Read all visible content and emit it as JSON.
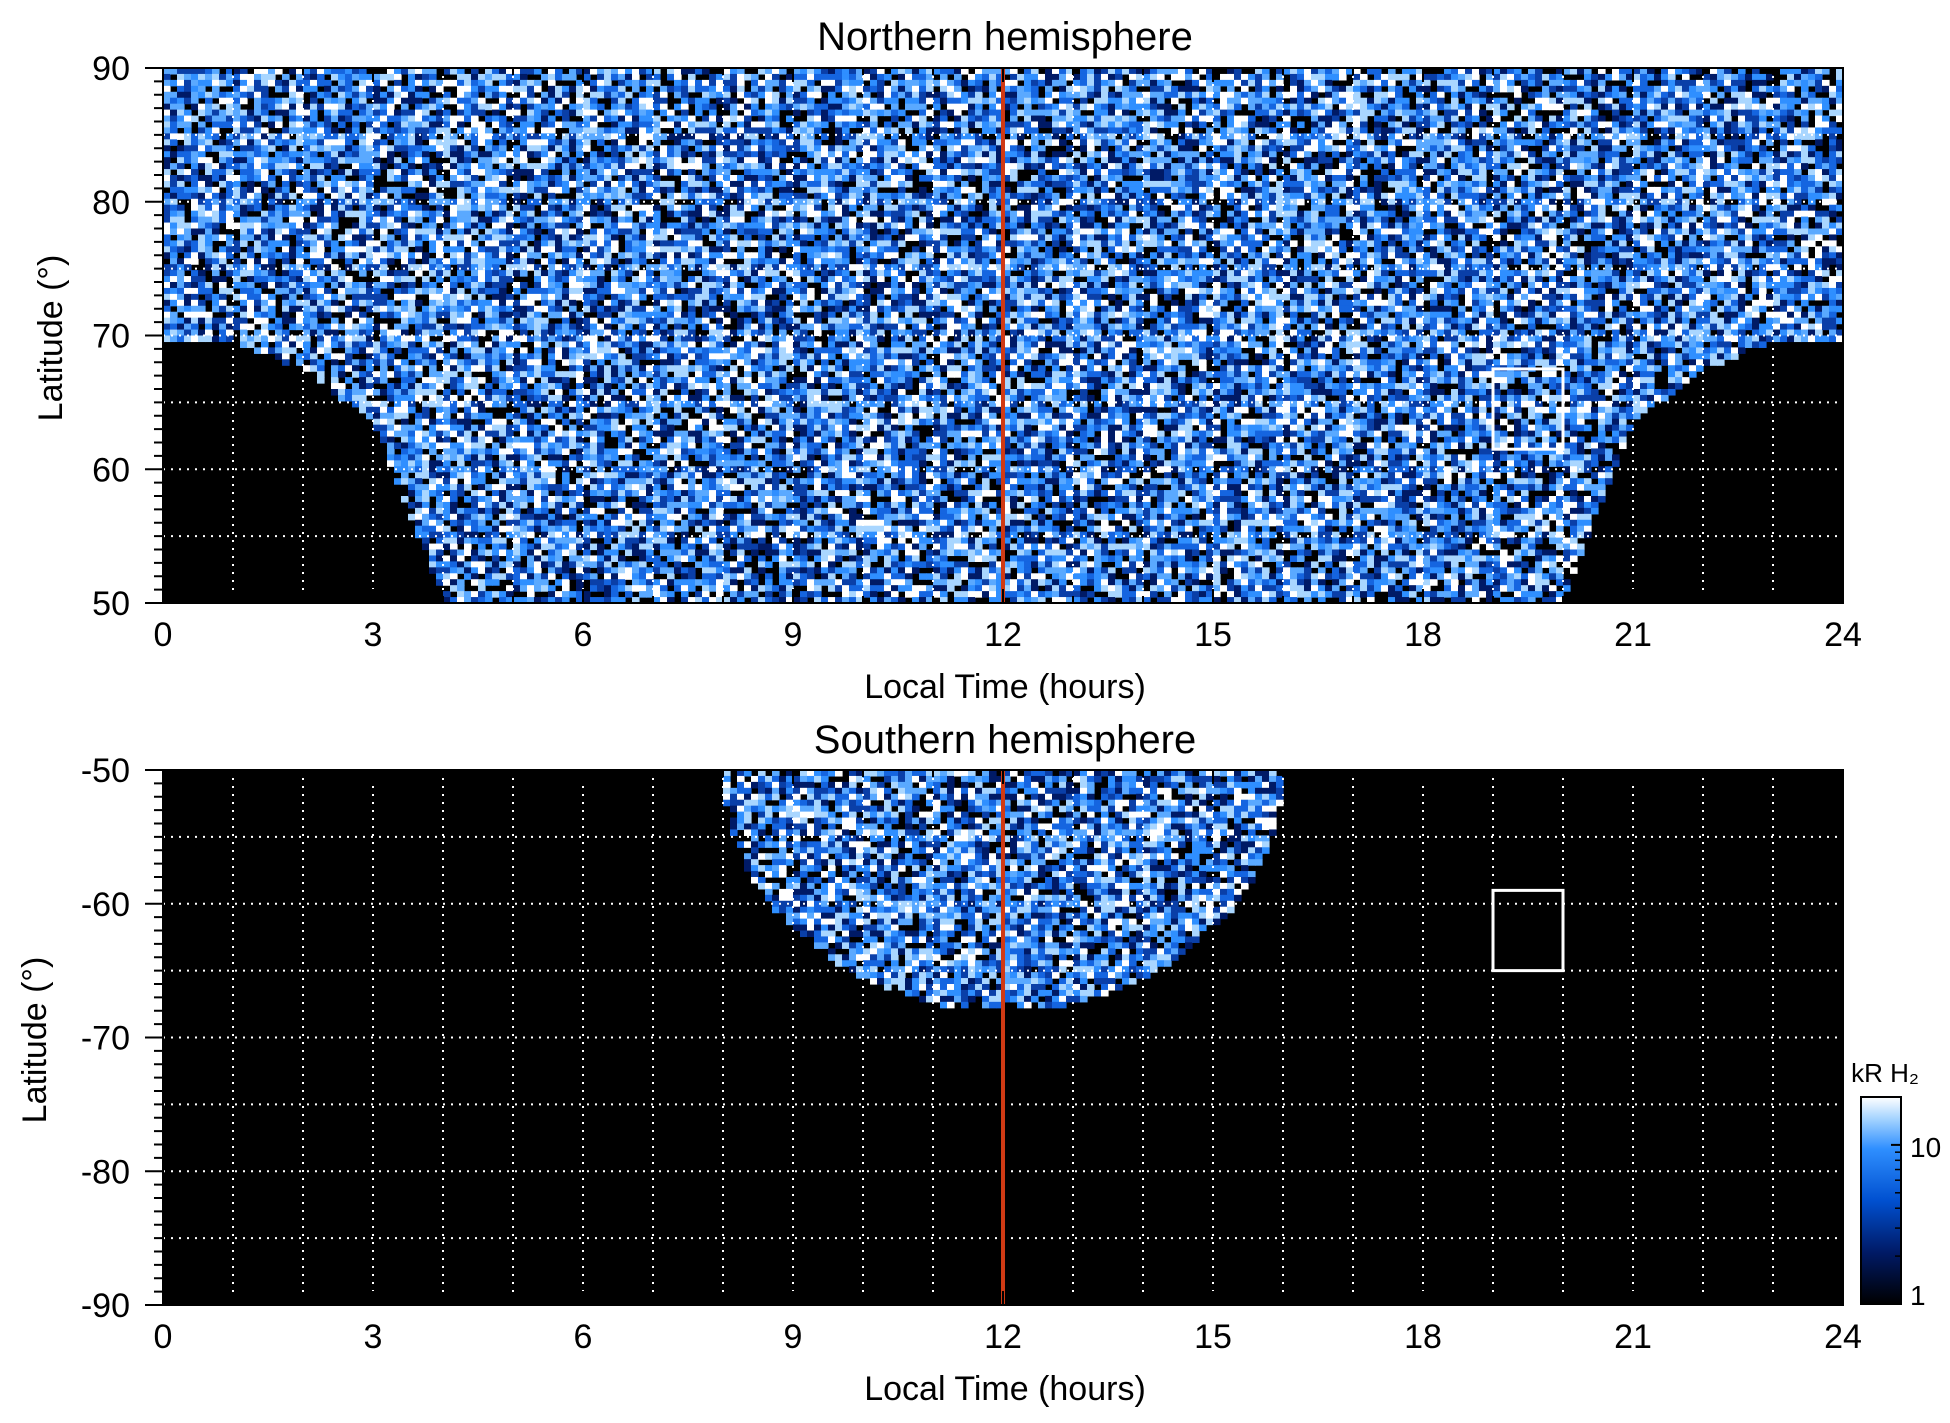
{
  "chart_data": [
    {
      "type": "heatmap",
      "title": "Northern hemisphere",
      "xlabel": "Local Time (hours)",
      "ylabel": "Latitude (°)",
      "xlim": [
        0,
        24
      ],
      "ylim": [
        50,
        90
      ],
      "xticks": [
        0,
        3,
        6,
        9,
        12,
        15,
        18,
        21,
        24
      ],
      "yticks": [
        50,
        60,
        70,
        80,
        90
      ],
      "grid": true,
      "emission_boundary": {
        "dawn_lat_at_lt": [
          [
            0,
            69.5
          ],
          [
            1,
            69.5
          ],
          [
            2,
            67.5
          ],
          [
            3,
            63.5
          ],
          [
            3.5,
            57
          ],
          [
            4,
            50
          ]
        ],
        "dusk_lat_at_lt": [
          [
            20,
            50
          ],
          [
            20.5,
            57
          ],
          [
            21,
            63.5
          ],
          [
            22,
            67.5
          ],
          [
            23,
            69.5
          ],
          [
            24,
            69.5
          ]
        ]
      },
      "marker_line_lt": 12,
      "marker_box": {
        "lt": [
          19,
          20
        ],
        "lat": [
          61.5,
          67.5
        ]
      }
    },
    {
      "type": "heatmap",
      "title": "Southern hemisphere",
      "xlabel": "Local Time (hours)",
      "ylabel": "Latitude (°)",
      "xlim": [
        0,
        24
      ],
      "ylim": [
        -90,
        -50
      ],
      "xticks": [
        0,
        3,
        6,
        9,
        12,
        15,
        18,
        21,
        24
      ],
      "yticks": [
        -50,
        -60,
        -70,
        -80,
        -90
      ],
      "grid": true,
      "emission_region": {
        "lt_range": [
          8,
          16
        ],
        "lat_extent_at_noon": -68
      },
      "marker_line_lt": 12,
      "marker_box": {
        "lt": [
          19,
          20
        ],
        "lat": [
          -65,
          -59
        ]
      }
    }
  ],
  "colorbar": {
    "label": "kR H₂",
    "scale": "log",
    "range": [
      1,
      20
    ],
    "ticks": [
      "10",
      "1"
    ],
    "colors": [
      "#000000",
      "#001a66",
      "#0050d0",
      "#2f8fff",
      "#a9d6ff",
      "#ffffff"
    ]
  },
  "marker_line_color": "#d03a14"
}
